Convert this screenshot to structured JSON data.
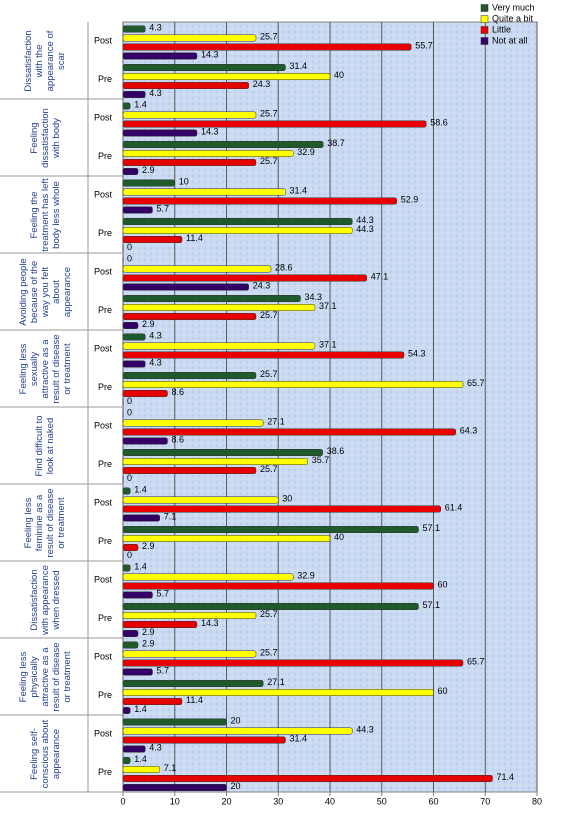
{
  "chart_data": {
    "type": "bar",
    "orientation": "horizontal",
    "groups": [
      "Dissatisfaction with the appearance of scar",
      "Feeling dissatisfaction with body",
      "Feeling the treatment has left body less whole",
      "Avoiding people because of the way you felt about appearance",
      "Feeling less sexually attractive as a result of disease or treatment",
      "Find difficult to look at naked",
      "Feeling less feminine as a result of disease or treatment",
      "Dissatisfaction with appearance when dressed",
      "Feeling less physically attractive as a result of disease or treatment",
      "Feeling self-conscious about appearance"
    ],
    "categories": [
      "Post",
      "Pre",
      "Post",
      "Pre",
      "Post",
      "Pre",
      "Post",
      "Pre",
      "Post",
      "Pre",
      "Post",
      "Pre",
      "Post",
      "Pre",
      "Post",
      "Pre",
      "Post",
      "Pre",
      "Post",
      "Pre"
    ],
    "series": [
      {
        "name": "Very much",
        "color": "#1f5a2c",
        "values": [
          4.3,
          31.4,
          1.4,
          38.7,
          10,
          44.3,
          0,
          34.3,
          4.3,
          25.7,
          0,
          38.6,
          1.4,
          57.1,
          1.4,
          57.1,
          2.9,
          27.1,
          20,
          1.4
        ]
      },
      {
        "name": "Quite a bit",
        "color": "#ffff00",
        "values": [
          25.7,
          40,
          25.7,
          32.9,
          31.4,
          44.3,
          28.6,
          37.1,
          37.1,
          65.7,
          27.1,
          35.7,
          30,
          40,
          32.9,
          25.7,
          25.7,
          60,
          44.3,
          7.1
        ]
      },
      {
        "name": "Little",
        "color": "#e60000",
        "values": [
          55.7,
          24.3,
          58.6,
          25.7,
          52.9,
          11.4,
          47.1,
          25.7,
          54.3,
          8.6,
          64.3,
          25.7,
          61.4,
          2.9,
          60,
          14.3,
          65.7,
          11.4,
          31.4,
          71.4
        ]
      },
      {
        "name": "Not at all",
        "color": "#330066",
        "values": [
          14.3,
          4.3,
          14.3,
          2.9,
          5.7,
          0,
          24.3,
          2.9,
          4.3,
          0,
          8.6,
          0,
          7.1,
          0,
          5.7,
          2.9,
          5.7,
          1.4,
          4.3,
          20
        ]
      }
    ],
    "xlim": [
      0,
      80
    ],
    "xticks": [
      0,
      10,
      20,
      30,
      40,
      50,
      60,
      70,
      80
    ],
    "grid": true,
    "legend": "top-right"
  }
}
